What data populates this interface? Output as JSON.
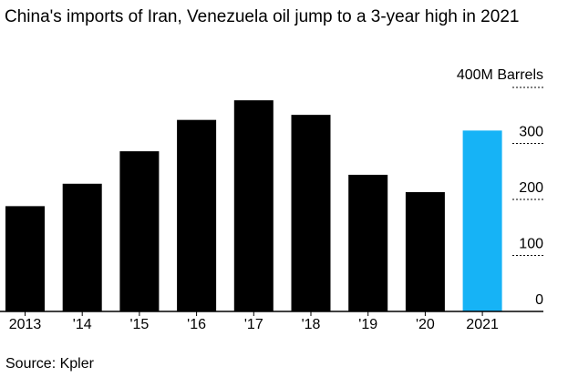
{
  "chart_data": {
    "type": "bar",
    "title": "China's imports of Iran, Venezuela oil jump to a 3-year high in 2021",
    "ylabel": "",
    "unit_label": "400M Barrels",
    "categories": [
      "2013",
      "'14",
      "'15",
      "'16",
      "'17",
      "'18",
      "'19",
      "'20",
      "2021"
    ],
    "values": [
      188,
      228,
      286,
      342,
      377,
      351,
      244,
      213,
      323
    ],
    "ylim": [
      0,
      400
    ],
    "yticks": [
      "0",
      "100",
      "200",
      "300"
    ],
    "grid": true,
    "source": "Source: Kpler"
  },
  "colors": {
    "bar_default": "#000000",
    "bar_highlight": "#16b3f6",
    "grid": "#000000"
  },
  "highlight_category": "2021"
}
